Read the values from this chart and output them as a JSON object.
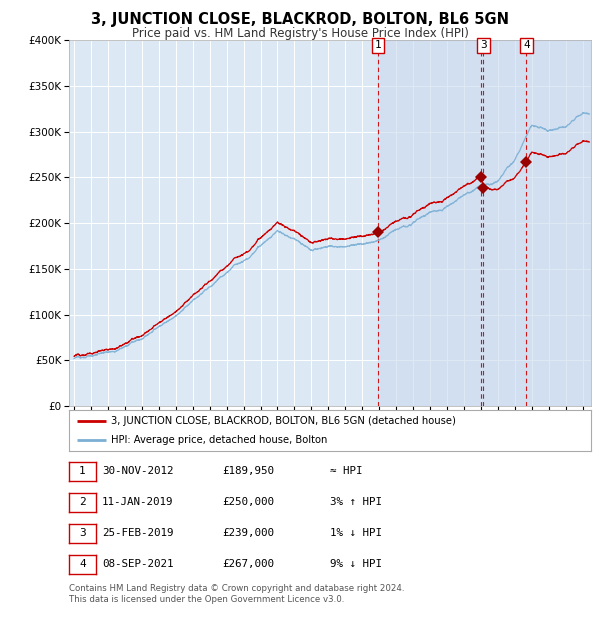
{
  "title": "3, JUNCTION CLOSE, BLACKROD, BOLTON, BL6 5GN",
  "subtitle": "Price paid vs. HM Land Registry's House Price Index (HPI)",
  "plot_bg_color": "#dce9f5",
  "shade_color": "#dce9f5",
  "legend_line1": "3, JUNCTION CLOSE, BLACKROD, BOLTON, BL6 5GN (detached house)",
  "legend_line2": "HPI: Average price, detached house, Bolton",
  "transactions": [
    {
      "num": 1,
      "date": "30-NOV-2012",
      "price": 189950,
      "rel": "≈ HPI",
      "year": 2012.92
    },
    {
      "num": 2,
      "date": "11-JAN-2019",
      "price": 250000,
      "rel": "3% ↑ HPI",
      "year": 2019.03
    },
    {
      "num": 3,
      "date": "25-FEB-2019",
      "price": 239000,
      "rel": "1% ↓ HPI",
      "year": 2019.15
    },
    {
      "num": 4,
      "date": "08-SEP-2021",
      "price": 267000,
      "rel": "9% ↓ HPI",
      "year": 2021.69
    }
  ],
  "footer1": "Contains HM Land Registry data © Crown copyright and database right 2024.",
  "footer2": "This data is licensed under the Open Government Licence v3.0.",
  "red_line_color": "#cc0000",
  "blue_line_color": "#7bafd4",
  "dashed_color": "#cc0000",
  "marker_color": "#990000",
  "ylim": [
    0,
    400000
  ],
  "yticks": [
    0,
    50000,
    100000,
    150000,
    200000,
    250000,
    300000,
    350000,
    400000
  ],
  "xlim_start": 1994.7,
  "xlim_end": 2025.5,
  "hpi_anchors_y": [
    1995,
    1996,
    1997,
    1998,
    1999,
    2000,
    2001,
    2002,
    2003,
    2004,
    2005,
    2006,
    2007,
    2008,
    2009,
    2010,
    2011,
    2012,
    2013,
    2014,
    2015,
    2016,
    2017,
    2018,
    2019,
    2020,
    2021,
    2022,
    2023,
    2024,
    2025
  ],
  "hpi_anchors_v": [
    52000,
    55000,
    60000,
    67000,
    75000,
    88000,
    100000,
    115000,
    130000,
    148000,
    163000,
    178000,
    195000,
    185000,
    170000,
    175000,
    172000,
    175000,
    182000,
    192000,
    200000,
    210000,
    218000,
    228000,
    238000,
    242000,
    265000,
    300000,
    295000,
    300000,
    315000
  ]
}
